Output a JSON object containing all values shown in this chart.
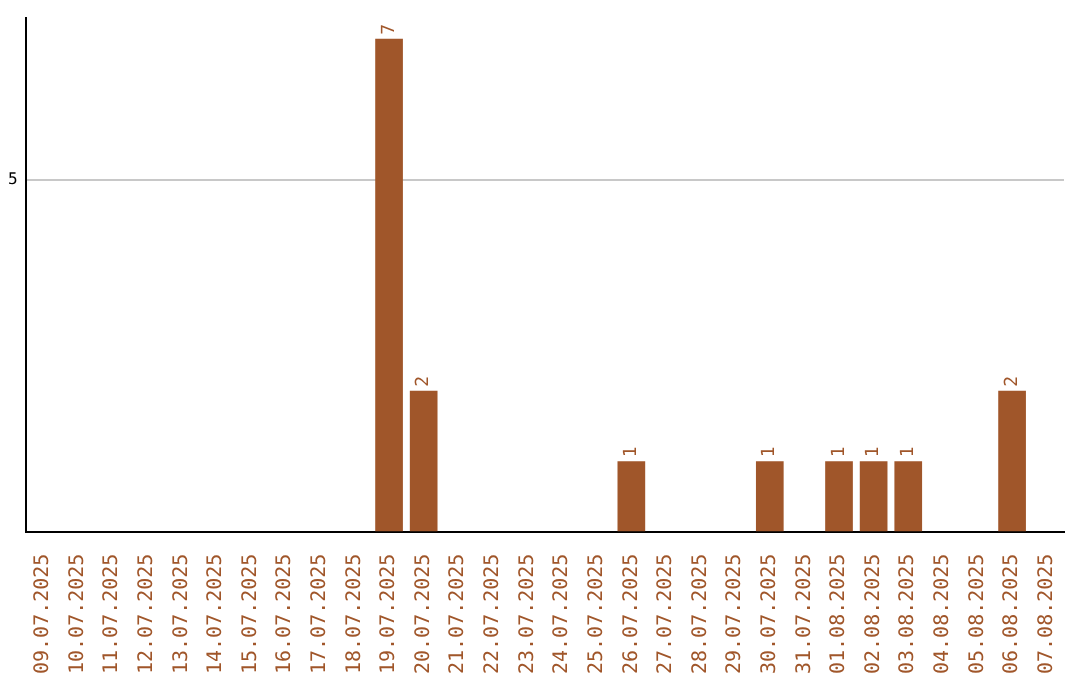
{
  "chart_data": {
    "type": "bar",
    "categories": [
      "09.07.2025",
      "10.07.2025",
      "11.07.2025",
      "12.07.2025",
      "13.07.2025",
      "14.07.2025",
      "15.07.2025",
      "16.07.2025",
      "17.07.2025",
      "18.07.2025",
      "19.07.2025",
      "20.07.2025",
      "21.07.2025",
      "22.07.2025",
      "23.07.2025",
      "24.07.2025",
      "25.07.2025",
      "26.07.2025",
      "27.07.2025",
      "28.07.2025",
      "29.07.2025",
      "30.07.2025",
      "31.07.2025",
      "01.08.2025",
      "02.08.2025",
      "03.08.2025",
      "04.08.2025",
      "05.08.2025",
      "06.08.2025",
      "07.08.2025"
    ],
    "values": [
      0,
      0,
      0,
      0,
      0,
      0,
      0,
      0,
      0,
      0,
      7,
      2,
      0,
      0,
      0,
      0,
      0,
      1,
      0,
      0,
      0,
      1,
      0,
      1,
      1,
      1,
      0,
      0,
      2,
      0
    ],
    "value_labels": [
      null,
      null,
      null,
      null,
      null,
      null,
      null,
      null,
      null,
      null,
      "7",
      "2",
      null,
      null,
      null,
      null,
      null,
      "1",
      null,
      null,
      null,
      "1",
      null,
      "1",
      "1",
      "1",
      null,
      null,
      "2",
      null
    ],
    "color": "#a0562a",
    "ylim": [
      0,
      7.3
    ],
    "yticks": [
      5
    ],
    "grid": "y",
    "legend": false
  }
}
